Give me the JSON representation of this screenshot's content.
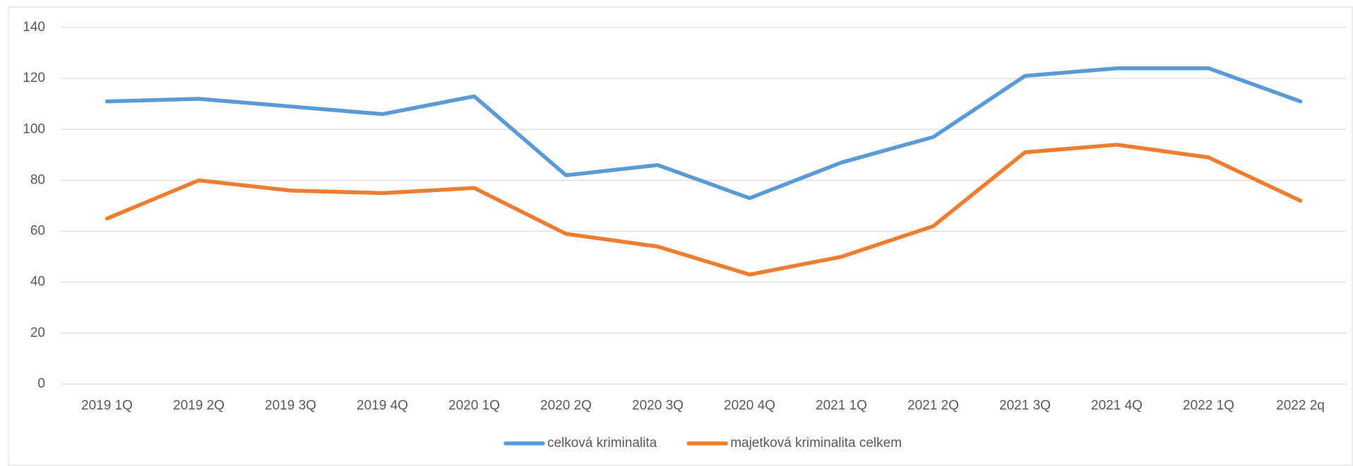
{
  "chart_data": {
    "type": "line",
    "categories": [
      "2019 1Q",
      "2019 2Q",
      "2019 3Q",
      "2019 4Q",
      "2020 1Q",
      "2020 2Q",
      "2020 3Q",
      "2020 4Q",
      "2021 1Q",
      "2021 2Q",
      "2021 3Q",
      "2021 4Q",
      "2022 1Q",
      "2022 2q"
    ],
    "series": [
      {
        "name": "celková kriminalita",
        "color": "#5b9bd5",
        "values": [
          111,
          112,
          109,
          106,
          113,
          82,
          86,
          73,
          87,
          97,
          121,
          124,
          124,
          111
        ]
      },
      {
        "name": "majetková kriminalita celkem",
        "color": "#ed7d31",
        "values": [
          65,
          80,
          76,
          75,
          77,
          59,
          54,
          43,
          50,
          62,
          91,
          94,
          89,
          72
        ]
      }
    ],
    "ylim": [
      0,
      140
    ],
    "yticks": [
      0,
      20,
      40,
      60,
      80,
      100,
      120,
      140
    ],
    "grid": true,
    "legend": "bottom"
  }
}
